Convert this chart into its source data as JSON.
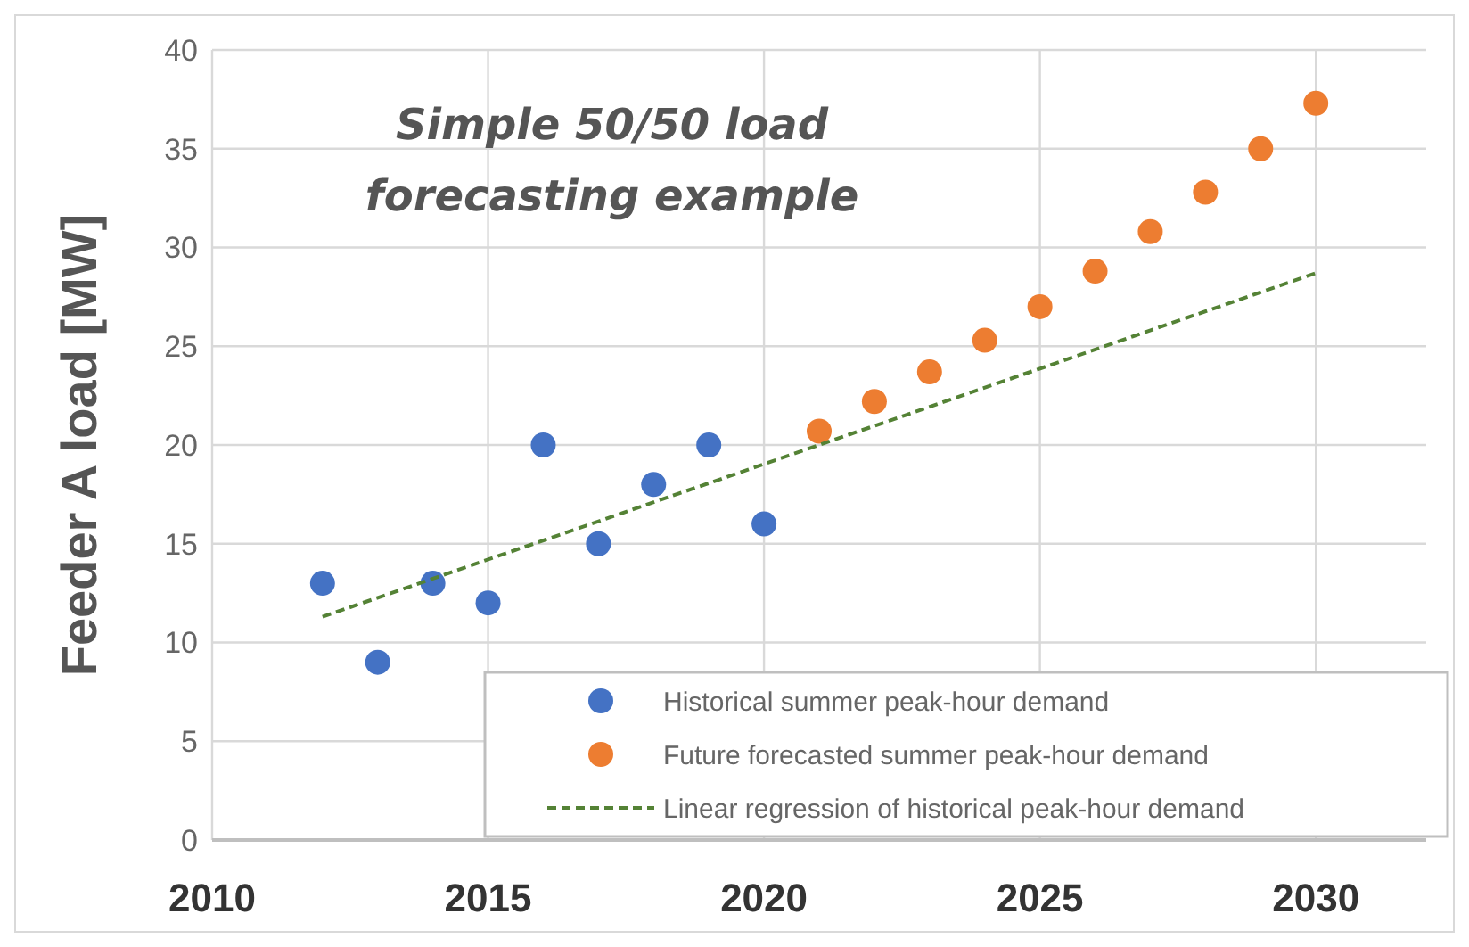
{
  "chart_data": {
    "type": "scatter",
    "title": "Simple 50/50 load forecasting example",
    "ylabel": "Feeder A load [MW]",
    "xlim": [
      2010,
      2032
    ],
    "xticks": [
      2010,
      2015,
      2020,
      2025,
      2030
    ],
    "ylim": [
      0,
      40
    ],
    "yticks": [
      0,
      5,
      10,
      15,
      20,
      25,
      30,
      35,
      40
    ],
    "grid": true,
    "legend": "bottom right",
    "marker": "circle",
    "series": [
      {
        "name": "Historical summer peak-hour demand",
        "color": "#4472c4",
        "x": [
          2012,
          2013,
          2014,
          2015,
          2016,
          2017,
          2018,
          2019,
          2020
        ],
        "values": [
          13,
          9,
          13,
          12,
          20,
          15,
          18,
          20,
          16
        ]
      },
      {
        "name": "Future forecasted summer peak-hour demand",
        "color": "#ed7d31",
        "x": [
          2021,
          2022,
          2023,
          2024,
          2025,
          2026,
          2027,
          2028,
          2029,
          2030
        ],
        "values": [
          20.7,
          22.2,
          23.7,
          25.3,
          27,
          28.8,
          30.8,
          32.8,
          35,
          37.3
        ]
      },
      {
        "name": "Linear regression of historical peak-hour demand",
        "type": "line",
        "line_style": "dashed",
        "marker": "none",
        "color": "#548235",
        "x": [
          2012,
          2030
        ],
        "values": [
          11.3,
          28.7
        ]
      }
    ]
  }
}
